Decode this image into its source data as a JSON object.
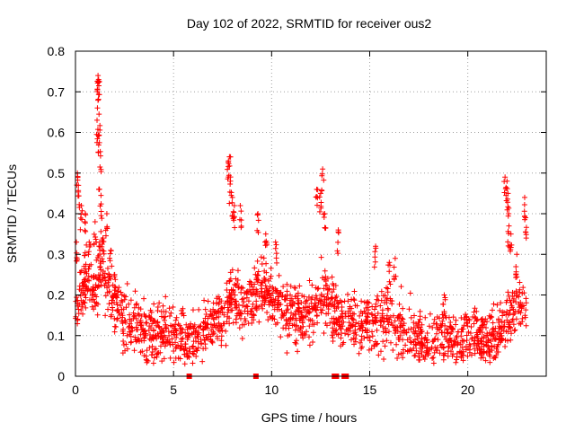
{
  "chart_data": {
    "type": "scatter",
    "title": "Day 102 of 2022, SRMTID for receiver ous2",
    "xlabel": "GPS time / hours",
    "ylabel": "SRMTID / TECUs",
    "xlim": [
      0,
      24
    ],
    "ylim": [
      0,
      0.8
    ],
    "xticks": [
      0,
      5,
      10,
      15,
      20
    ],
    "xtick_labels": [
      "0",
      "5",
      "10",
      "15",
      "20"
    ],
    "yticks": [
      0,
      0.1,
      0.2,
      0.3,
      0.4,
      0.5,
      0.6,
      0.7,
      0.8
    ],
    "ytick_labels": [
      "0",
      "0.1",
      "0.2",
      "0.3",
      "0.4",
      "0.5",
      "0.6",
      "0.7",
      "0.8"
    ],
    "grid": true,
    "marker": "plus",
    "series_color": "#ff0000",
    "zero_markers": [
      5.8,
      9.2,
      13.2,
      13.3,
      13.7,
      13.8
    ],
    "key_points": [
      {
        "x": 0.05,
        "y": 0.33
      },
      {
        "x": 0.1,
        "y": 0.5
      },
      {
        "x": 0.15,
        "y": 0.47
      },
      {
        "x": 0.3,
        "y": 0.42
      },
      {
        "x": 0.5,
        "y": 0.4
      },
      {
        "x": 0.7,
        "y": 0.33
      },
      {
        "x": 0.9,
        "y": 0.22
      },
      {
        "x": 1.0,
        "y": 0.38
      },
      {
        "x": 1.1,
        "y": 0.63
      },
      {
        "x": 1.12,
        "y": 0.705
      },
      {
        "x": 1.15,
        "y": 0.74
      },
      {
        "x": 1.18,
        "y": 0.73
      },
      {
        "x": 1.2,
        "y": 0.645
      },
      {
        "x": 1.22,
        "y": 0.575
      },
      {
        "x": 1.25,
        "y": 0.515
      },
      {
        "x": 1.3,
        "y": 0.445
      },
      {
        "x": 1.4,
        "y": 0.34
      },
      {
        "x": 1.6,
        "y": 0.4
      },
      {
        "x": 1.8,
        "y": 0.31
      },
      {
        "x": 2.0,
        "y": 0.25
      },
      {
        "x": 7.8,
        "y": 0.53
      },
      {
        "x": 7.85,
        "y": 0.54
      },
      {
        "x": 7.9,
        "y": 0.48
      },
      {
        "x": 8.0,
        "y": 0.44
      },
      {
        "x": 8.1,
        "y": 0.42
      },
      {
        "x": 8.4,
        "y": 0.42
      },
      {
        "x": 9.3,
        "y": 0.4
      },
      {
        "x": 9.7,
        "y": 0.35
      },
      {
        "x": 10.2,
        "y": 0.33
      },
      {
        "x": 12.3,
        "y": 0.46
      },
      {
        "x": 12.5,
        "y": 0.45
      },
      {
        "x": 12.6,
        "y": 0.51
      },
      {
        "x": 12.7,
        "y": 0.4
      },
      {
        "x": 13.4,
        "y": 0.36
      },
      {
        "x": 15.3,
        "y": 0.32
      },
      {
        "x": 16.0,
        "y": 0.28
      },
      {
        "x": 16.3,
        "y": 0.29
      },
      {
        "x": 18.8,
        "y": 0.2
      },
      {
        "x": 21.9,
        "y": 0.49
      },
      {
        "x": 22.0,
        "y": 0.48
      },
      {
        "x": 22.05,
        "y": 0.45
      },
      {
        "x": 22.1,
        "y": 0.37
      },
      {
        "x": 22.2,
        "y": 0.35
      },
      {
        "x": 22.5,
        "y": 0.3
      },
      {
        "x": 22.9,
        "y": 0.44
      },
      {
        "x": 22.95,
        "y": 0.39
      }
    ],
    "trend": [
      {
        "x": 0,
        "y": 0.18
      },
      {
        "x": 0.5,
        "y": 0.24
      },
      {
        "x": 1.0,
        "y": 0.22
      },
      {
        "x": 1.3,
        "y": 0.26
      },
      {
        "x": 2.0,
        "y": 0.18
      },
      {
        "x": 2.5,
        "y": 0.13
      },
      {
        "x": 3.0,
        "y": 0.12
      },
      {
        "x": 4.0,
        "y": 0.1
      },
      {
        "x": 4.5,
        "y": 0.12
      },
      {
        "x": 5.0,
        "y": 0.1
      },
      {
        "x": 6.0,
        "y": 0.1
      },
      {
        "x": 7.0,
        "y": 0.13
      },
      {
        "x": 7.5,
        "y": 0.15
      },
      {
        "x": 8.0,
        "y": 0.2
      },
      {
        "x": 8.5,
        "y": 0.18
      },
      {
        "x": 9.0,
        "y": 0.2
      },
      {
        "x": 9.5,
        "y": 0.22
      },
      {
        "x": 10.0,
        "y": 0.2
      },
      {
        "x": 10.5,
        "y": 0.16
      },
      {
        "x": 11.0,
        "y": 0.14
      },
      {
        "x": 12.0,
        "y": 0.15
      },
      {
        "x": 12.5,
        "y": 0.2
      },
      {
        "x": 13.0,
        "y": 0.18
      },
      {
        "x": 13.5,
        "y": 0.14
      },
      {
        "x": 14.0,
        "y": 0.13
      },
      {
        "x": 15.0,
        "y": 0.14
      },
      {
        "x": 16.0,
        "y": 0.14
      },
      {
        "x": 17.0,
        "y": 0.1
      },
      {
        "x": 18.0,
        "y": 0.08
      },
      {
        "x": 19.0,
        "y": 0.1
      },
      {
        "x": 20.0,
        "y": 0.1
      },
      {
        "x": 21.0,
        "y": 0.1
      },
      {
        "x": 21.5,
        "y": 0.09
      },
      {
        "x": 22.0,
        "y": 0.14
      },
      {
        "x": 22.5,
        "y": 0.18
      },
      {
        "x": 23.0,
        "y": 0.16
      }
    ],
    "noise_points": 1800,
    "noise_spread": 0.05
  }
}
